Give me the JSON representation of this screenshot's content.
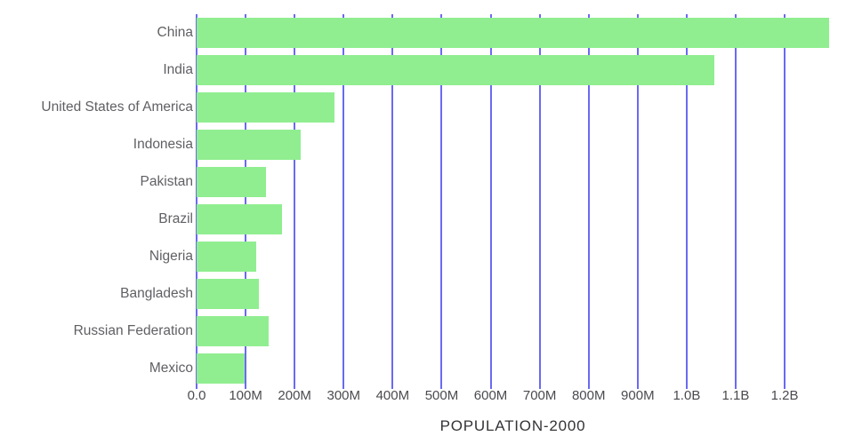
{
  "chart_data": {
    "type": "bar",
    "orientation": "horizontal",
    "title": "",
    "xlabel": "POPULATION-2000",
    "ylabel": "",
    "categories": [
      "China",
      "India",
      "United States of America",
      "Indonesia",
      "Pakistan",
      "Brazil",
      "Nigeria",
      "Bangladesh",
      "Russian Federation",
      "Mexico"
    ],
    "values_millions": [
      1290.6,
      1056.6,
      281.7,
      211.5,
      142.3,
      174.8,
      122.3,
      127.7,
      146.4,
      98.9
    ],
    "xlim_millions": [
      0,
      1290.6
    ],
    "x_tick_step_millions": 100,
    "x_tick_labels": [
      "0.0",
      "100M",
      "200M",
      "300M",
      "400M",
      "500M",
      "600M",
      "700M",
      "800M",
      "900M",
      "1.0B",
      "1.1B",
      "1.2B"
    ],
    "grid": true,
    "legend": false,
    "colors": {
      "bar": "#90EE90",
      "gridline": "#6A6AF2",
      "y_label_text": "#606065",
      "x_tick_text": "#4B4B50",
      "axis_title_text": "#343438",
      "background": "#FFFFFF"
    }
  }
}
